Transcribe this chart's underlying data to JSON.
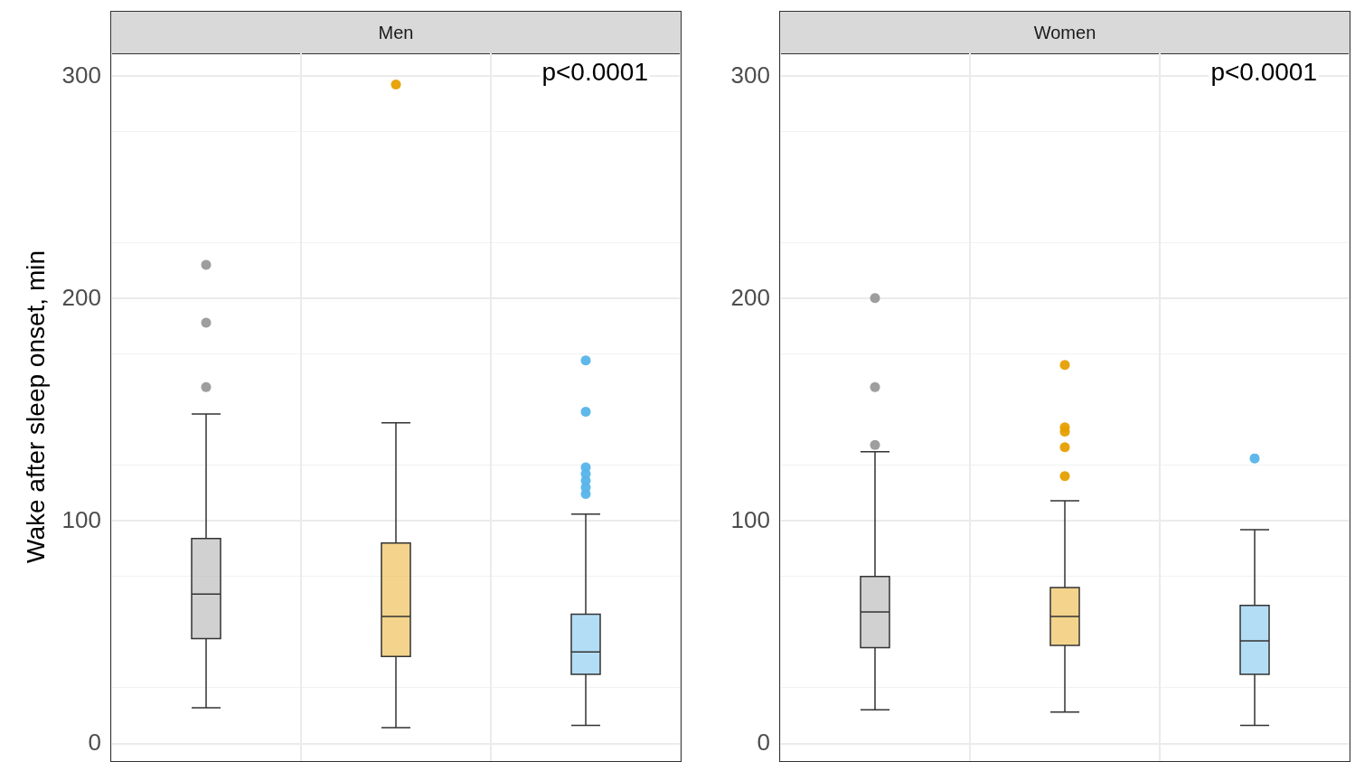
{
  "chart_data": [
    {
      "type": "box",
      "title": "Men",
      "ylabel": "Wake after sleep onset, min",
      "categories": [
        null,
        null,
        null
      ],
      "colors": [
        "#999999",
        "#e69f00",
        "#56b4e9"
      ],
      "boxes": [
        {
          "low": 16,
          "q1": 47,
          "median": 67,
          "q3": 92,
          "high": 148,
          "outliers": [
            160,
            189,
            215
          ]
        },
        {
          "low": 7,
          "q1": 39,
          "median": 57,
          "q3": 90,
          "high": 144,
          "outliers": [
            296
          ]
        },
        {
          "low": 8,
          "q1": 31,
          "median": 41,
          "q3": 58,
          "high": 103,
          "outliers": [
            112,
            115,
            118,
            121,
            124,
            149,
            172
          ]
        }
      ],
      "ylim": [
        -8,
        310
      ],
      "yticks": [
        0,
        100,
        200,
        300
      ],
      "grid": true,
      "tick_labels": "y",
      "annotations": [
        "p<0.0001"
      ]
    },
    {
      "type": "box",
      "title": "Women",
      "categories": [
        null,
        null,
        null
      ],
      "colors": [
        "#999999",
        "#e69f00",
        "#56b4e9"
      ],
      "boxes": [
        {
          "low": 15,
          "q1": 43,
          "median": 59,
          "q3": 75,
          "high": 131,
          "outliers": [
            134,
            160,
            200
          ]
        },
        {
          "low": 14,
          "q1": 44,
          "median": 57,
          "q3": 70,
          "high": 109,
          "outliers": [
            120,
            133,
            140,
            142,
            170
          ]
        },
        {
          "low": 8,
          "q1": 31,
          "median": 46,
          "q3": 62,
          "high": 96,
          "outliers": [
            128
          ]
        }
      ],
      "ylim": [
        -8,
        310
      ],
      "yticks": [
        0,
        100,
        200,
        300
      ],
      "grid": true,
      "tick_labels": "y",
      "annotations": [
        "p<0.0001"
      ]
    }
  ]
}
